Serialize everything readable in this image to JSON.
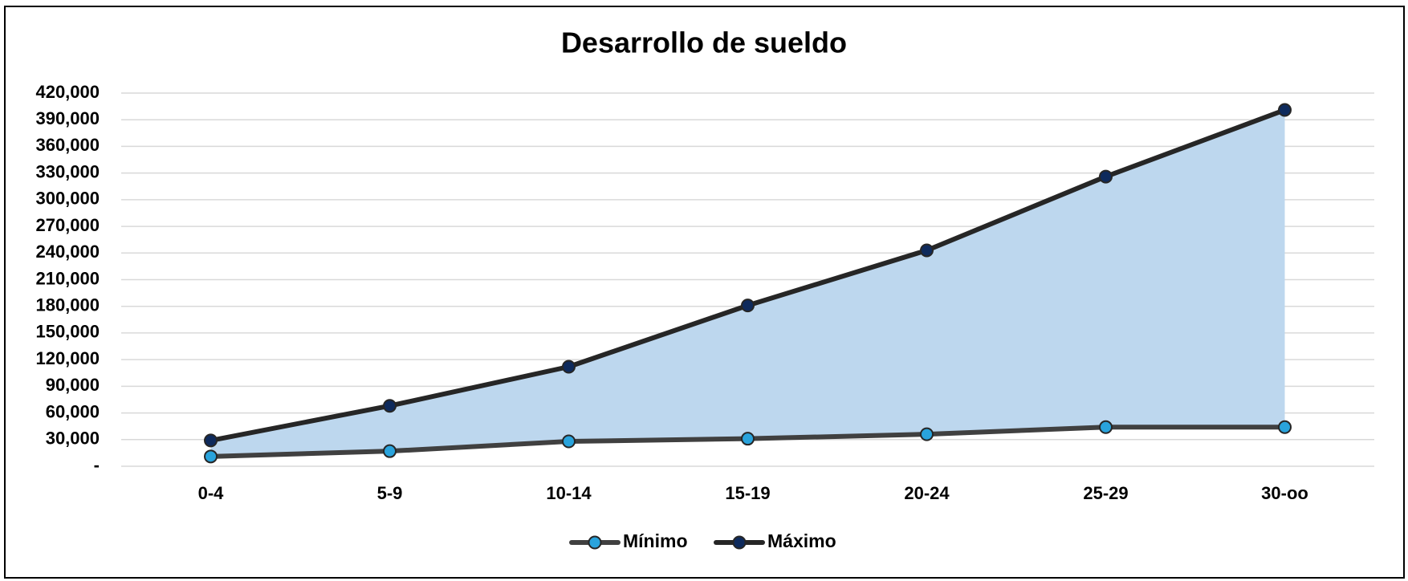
{
  "chart_data": {
    "type": "line",
    "title": "Desarrollo de sueldo",
    "categories": [
      "0-4",
      "5-9",
      "10-14",
      "15-19",
      "20-24",
      "25-29",
      "30-oo"
    ],
    "series": [
      {
        "name": "Mínimo",
        "color": "#404040",
        "marker_color": "#29a3dc",
        "values": [
          11000,
          17000,
          28000,
          31000,
          36000,
          44000,
          44000
        ]
      },
      {
        "name": "Máximo",
        "color": "#262626",
        "marker_color": "#0e2a5c",
        "values": [
          29000,
          68000,
          112000,
          181000,
          243000,
          326000,
          401000
        ]
      }
    ],
    "fill_between": {
      "color": "#bdd7ee"
    },
    "ylim": [
      0,
      420000
    ],
    "yticks": [
      {
        "value": 0,
        "label": "-"
      },
      {
        "value": 30000,
        "label": "30,000"
      },
      {
        "value": 60000,
        "label": "60,000"
      },
      {
        "value": 90000,
        "label": "90,000"
      },
      {
        "value": 120000,
        "label": "120,000"
      },
      {
        "value": 150000,
        "label": "150,000"
      },
      {
        "value": 180000,
        "label": "180,000"
      },
      {
        "value": 210000,
        "label": "210,000"
      },
      {
        "value": 240000,
        "label": "240,000"
      },
      {
        "value": 270000,
        "label": "270,000"
      },
      {
        "value": 300000,
        "label": "300,000"
      },
      {
        "value": 330000,
        "label": "330,000"
      },
      {
        "value": 360000,
        "label": "360,000"
      },
      {
        "value": 390000,
        "label": "390,000"
      },
      {
        "value": 420000,
        "label": "420,000"
      }
    ],
    "grid": true,
    "legend": "bottom"
  }
}
